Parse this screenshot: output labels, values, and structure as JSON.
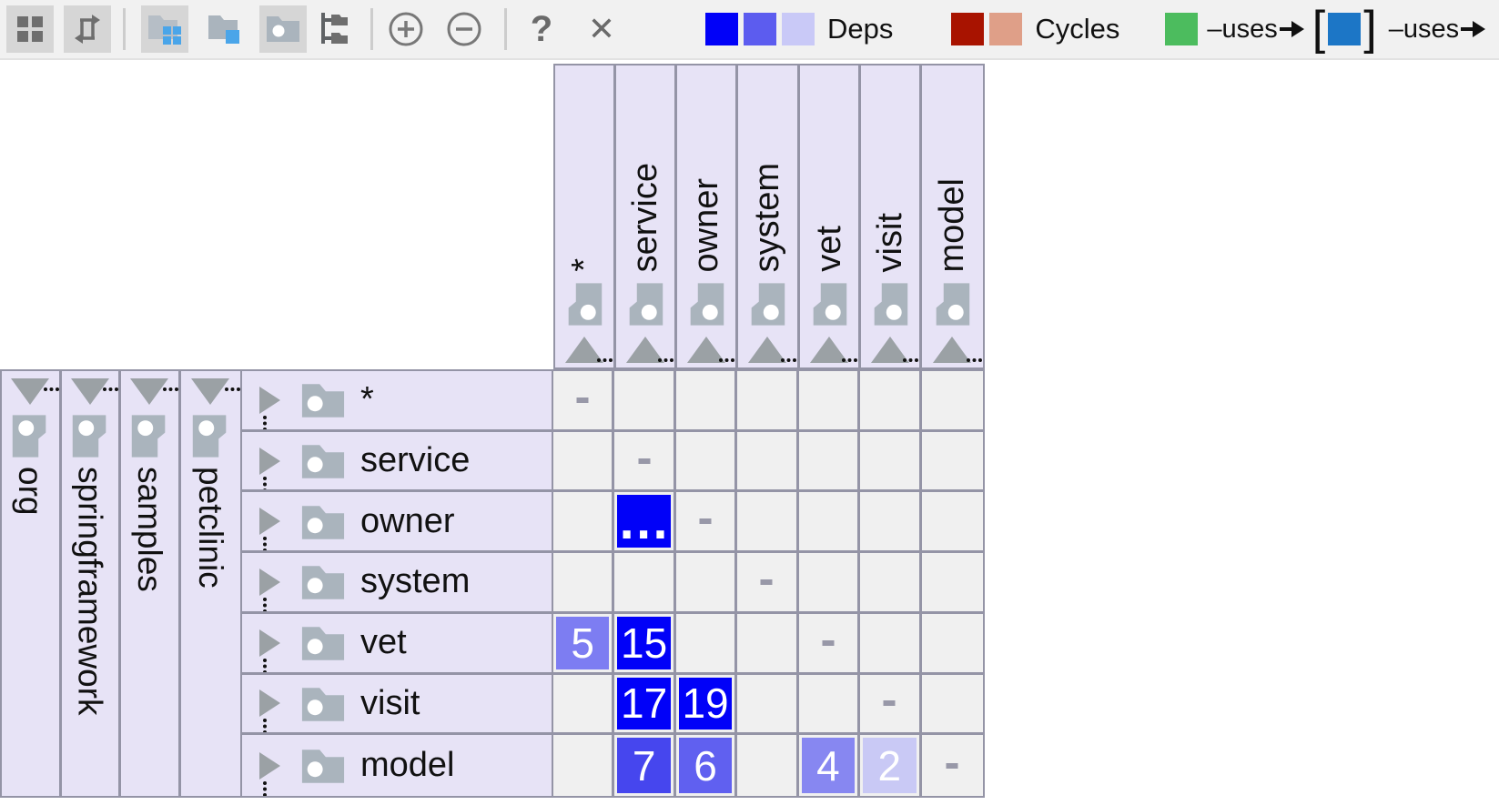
{
  "toolbar": {
    "help": "?",
    "close": "✕",
    "legend": {
      "deps_label": "Deps",
      "deps_colors": [
        "#0101f8",
        "#5c5cef",
        "#c9c9f7"
      ],
      "cycles_label": "Cycles",
      "cycles_colors": [
        "#a81300",
        "#df9f88"
      ],
      "uses_label": "–uses",
      "bracket_open": "[",
      "bracket_close": "]",
      "uses_from_color": "#4cbc5e",
      "uses_mid_color": "#1c76c6",
      "uses_to_color": "#f8d700"
    }
  },
  "hierarchy": {
    "items": [
      "org",
      "springframework",
      "samples",
      "petclinic"
    ]
  },
  "matrix": {
    "columns": [
      "*",
      "service",
      "owner",
      "system",
      "vet",
      "visit",
      "model"
    ],
    "rows": [
      "*",
      "service",
      "owner",
      "system",
      "vet",
      "visit",
      "model"
    ],
    "diagonal_marker": "-",
    "cells": [
      {
        "row": "owner",
        "col": "service",
        "value": "…",
        "color": "#0101f8"
      },
      {
        "row": "vet",
        "col": "*",
        "value": "5",
        "color": "#7d7df2"
      },
      {
        "row": "vet",
        "col": "service",
        "value": "15",
        "color": "#0101f8"
      },
      {
        "row": "visit",
        "col": "service",
        "value": "17",
        "color": "#0101f8"
      },
      {
        "row": "visit",
        "col": "owner",
        "value": "19",
        "color": "#0101f8"
      },
      {
        "row": "model",
        "col": "service",
        "value": "7",
        "color": "#4646ee"
      },
      {
        "row": "model",
        "col": "owner",
        "value": "6",
        "color": "#6060f0"
      },
      {
        "row": "model",
        "col": "vet",
        "value": "4",
        "color": "#8787f1"
      },
      {
        "row": "model",
        "col": "visit",
        "value": "2",
        "color": "#c9c9f5"
      }
    ]
  }
}
